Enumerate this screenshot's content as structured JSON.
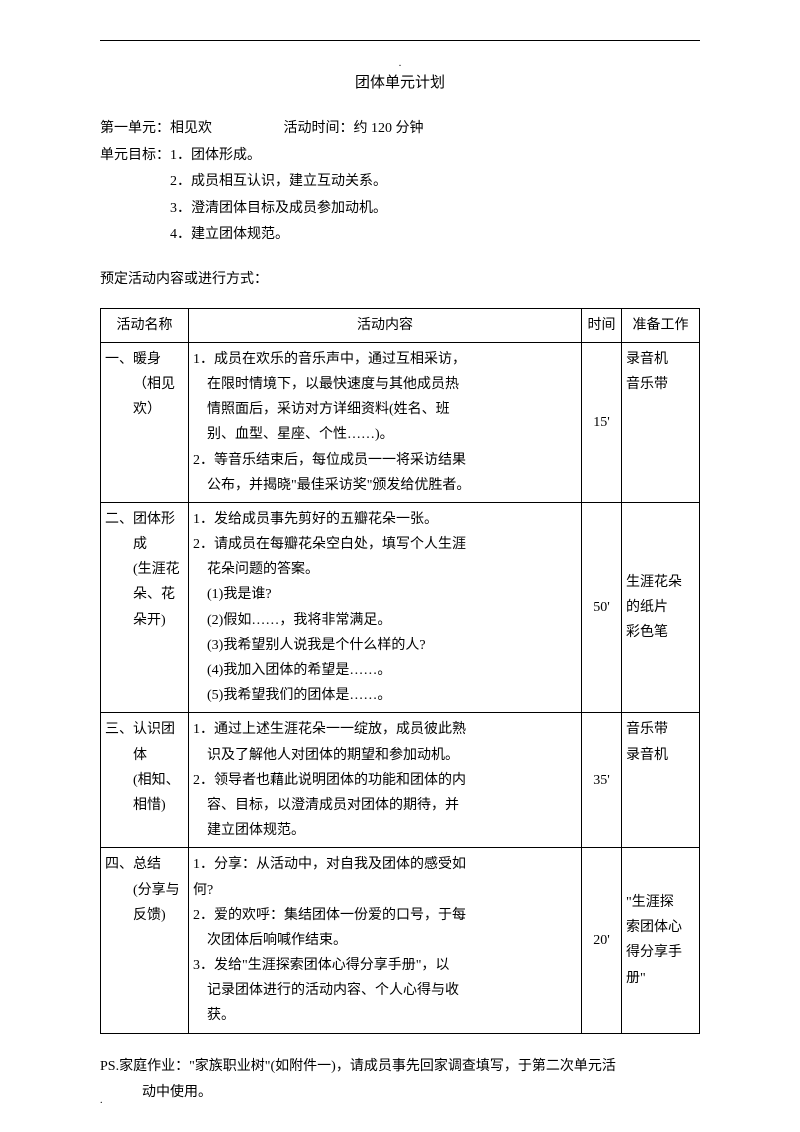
{
  "page": {
    "topDot": ".",
    "bottomDot": ".",
    "title": "团体单元计划",
    "unitLabel": "第一单元：",
    "unitName": "相见欢",
    "timeLabel": "活动时间：",
    "timeValue": "约 120 分钟",
    "goalsLabel": "单元目标：",
    "goals": [
      "1．团体形成。",
      "2．成员相互认识，建立互动关系。",
      "3．澄清团体目标及成员参加动机。",
      "4．建立团体规范。"
    ],
    "scheduleLabel": "预定活动内容或进行方式：",
    "ps1": "PS.家庭作业：\"家族职业树\"(如附件一)，请成员事先回家调查填写，于第二次单元活",
    "ps2": "动中使用。"
  },
  "table": {
    "headers": [
      "活动名称",
      "活动内容",
      "时间",
      "准备工作"
    ],
    "rows": [
      {
        "nameLines": [
          "一、暖身",
          "（相见",
          "欢）"
        ],
        "contentLines": [
          "1．成员在欢乐的音乐声中，通过互相采访，",
          "　在限时情境下，以最快速度与其他成员热",
          "　情照面后，采访对方详细资料(姓名、班",
          "　别、血型、星座、个性……)。",
          "2．等音乐结束后，每位成员一一将采访结果",
          "　公布，并揭晓\"最佳采访奖\"颁发给优胜者。"
        ],
        "time": "15'",
        "prepLines": [
          "录音机",
          "音乐带"
        ]
      },
      {
        "nameLines": [
          "二、团体形",
          "成",
          "(生涯花",
          "朵、花",
          "朵开)"
        ],
        "contentLines": [
          "1．发给成员事先剪好的五瓣花朵一张。",
          "2．请成员在每瓣花朵空白处，填写个人生涯",
          "　花朵问题的答案。",
          "　(1)我是谁?",
          "　(2)假如……，我将非常满足。",
          "　(3)我希望别人说我是个什么样的人?",
          "　(4)我加入团体的希望是……。",
          "　(5)我希望我们的团体是……。"
        ],
        "time": "50'",
        "prepLines": [
          "",
          "生涯花朵",
          "的纸片",
          "彩色笔"
        ]
      },
      {
        "nameLines": [
          "三、认识团",
          "体",
          "(相知、",
          "相惜)"
        ],
        "contentLines": [
          "1．通过上述生涯花朵一一绽放，成员彼此熟",
          "　识及了解他人对团体的期望和参加动机。",
          "2．领导者也藉此说明团体的功能和团体的内",
          "　容、目标，以澄清成员对团体的期待，并",
          "　建立团体规范。"
        ],
        "time": "35'",
        "prepLines": [
          "音乐带",
          "录音机"
        ]
      },
      {
        "nameLines": [
          "四、总结",
          "(分享与",
          "反馈)"
        ],
        "contentLines": [
          "1．分享：从活动中，对自我及团体的感受如",
          "何?",
          "2．爱的欢呼：集结团体一份爱的口号，于每",
          "　次团体后响喊作结束。",
          "3．发给\"生涯探索团体心得分享手册\"，以",
          "　记录团体进行的活动内容、个人心得与收",
          "　获。"
        ],
        "time": "20'",
        "prepLines": [
          "\"生涯探",
          "索团体心",
          "得分享手",
          "册\""
        ]
      }
    ]
  }
}
